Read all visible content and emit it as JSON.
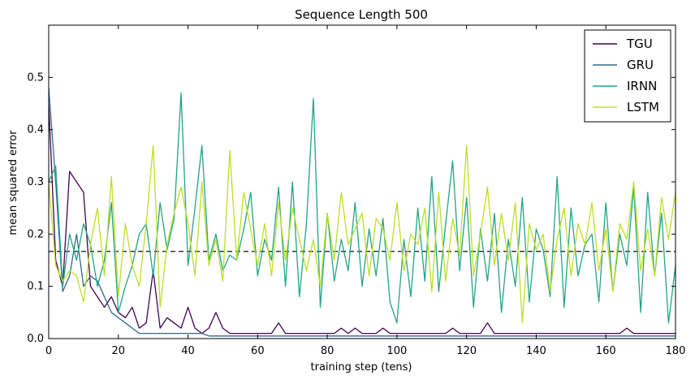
{
  "chart_data": {
    "type": "line",
    "title": "Sequence Length 500",
    "xlabel": "training step (tens)",
    "ylabel": "mean squared error",
    "xlim": [
      0,
      180
    ],
    "ylim": [
      0,
      0.6
    ],
    "xticks": [
      0,
      20,
      40,
      60,
      80,
      100,
      120,
      140,
      160,
      180
    ],
    "yticks": [
      0.0,
      0.1,
      0.2,
      0.3,
      0.4,
      0.5
    ],
    "ytick_labels": [
      "0.0",
      "0.1",
      "0.2",
      "0.3",
      "0.4",
      "0.5"
    ],
    "grid": false,
    "legend_position": "top-right",
    "baseline": {
      "style": "dashed",
      "value": 0.167,
      "color": "#333333"
    },
    "x": [
      0,
      2,
      4,
      6,
      8,
      10,
      12,
      14,
      16,
      18,
      20,
      22,
      24,
      26,
      28,
      30,
      32,
      34,
      36,
      38,
      40,
      42,
      44,
      46,
      48,
      50,
      52,
      54,
      56,
      58,
      60,
      62,
      64,
      66,
      68,
      70,
      72,
      74,
      76,
      78,
      80,
      82,
      84,
      86,
      88,
      90,
      92,
      94,
      96,
      98,
      100,
      102,
      104,
      106,
      108,
      110,
      112,
      114,
      116,
      118,
      120,
      122,
      124,
      126,
      128,
      130,
      132,
      134,
      136,
      138,
      140,
      142,
      144,
      146,
      148,
      150,
      152,
      154,
      156,
      158,
      160,
      162,
      164,
      166,
      168,
      170,
      172,
      174,
      176,
      178,
      180
    ],
    "series": [
      {
        "name": "TGU",
        "color": "#440154",
        "values": [
          0.45,
          0.15,
          0.1,
          0.32,
          0.3,
          0.28,
          0.1,
          0.08,
          0.06,
          0.08,
          0.05,
          0.04,
          0.06,
          0.02,
          0.03,
          0.13,
          0.02,
          0.04,
          0.03,
          0.02,
          0.06,
          0.02,
          0.01,
          0.02,
          0.05,
          0.02,
          0.01,
          0.01,
          0.01,
          0.01,
          0.01,
          0.01,
          0.01,
          0.03,
          0.01,
          0.01,
          0.01,
          0.01,
          0.01,
          0.01,
          0.01,
          0.01,
          0.02,
          0.01,
          0.02,
          0.01,
          0.01,
          0.01,
          0.02,
          0.01,
          0.01,
          0.01,
          0.01,
          0.01,
          0.01,
          0.01,
          0.01,
          0.01,
          0.02,
          0.01,
          0.01,
          0.01,
          0.01,
          0.03,
          0.01,
          0.01,
          0.01,
          0.01,
          0.01,
          0.01,
          0.01,
          0.01,
          0.01,
          0.01,
          0.01,
          0.01,
          0.01,
          0.01,
          0.01,
          0.01,
          0.01,
          0.01,
          0.01,
          0.02,
          0.01,
          0.01,
          0.01,
          0.01,
          0.01,
          0.01,
          0.01
        ]
      },
      {
        "name": "GRU",
        "color": "#31688e",
        "values": [
          0.48,
          0.3,
          0.09,
          0.12,
          0.2,
          0.1,
          0.12,
          0.11,
          0.08,
          0.05,
          0.04,
          0.03,
          0.02,
          0.01,
          0.01,
          0.01,
          0.01,
          0.01,
          0.01,
          0.01,
          0.01,
          0.01,
          0.01,
          0.005,
          0.005,
          0.005,
          0.005,
          0.005,
          0.005,
          0.005,
          0.005,
          0.005,
          0.005,
          0.005,
          0.005,
          0.005,
          0.005,
          0.005,
          0.005,
          0.005,
          0.005,
          0.005,
          0.005,
          0.005,
          0.005,
          0.005,
          0.005,
          0.005,
          0.005,
          0.005,
          0.005,
          0.005,
          0.005,
          0.005,
          0.005,
          0.005,
          0.005,
          0.005,
          0.005,
          0.005,
          0.005,
          0.005,
          0.005,
          0.005,
          0.005,
          0.005,
          0.005,
          0.005,
          0.005,
          0.005,
          0.005,
          0.005,
          0.005,
          0.005,
          0.005,
          0.005,
          0.005,
          0.005,
          0.005,
          0.005,
          0.005,
          0.005,
          0.005,
          0.005,
          0.005,
          0.005,
          0.005,
          0.005,
          0.005,
          0.005,
          0.005
        ]
      },
      {
        "name": "IRNN",
        "color": "#21a585",
        "values": [
          0.3,
          0.33,
          0.1,
          0.2,
          0.15,
          0.22,
          0.18,
          0.1,
          0.15,
          0.26,
          0.05,
          0.1,
          0.14,
          0.2,
          0.22,
          0.12,
          0.26,
          0.17,
          0.23,
          0.47,
          0.14,
          0.25,
          0.37,
          0.15,
          0.2,
          0.13,
          0.16,
          0.15,
          0.21,
          0.28,
          0.12,
          0.19,
          0.15,
          0.29,
          0.1,
          0.3,
          0.08,
          0.22,
          0.46,
          0.06,
          0.24,
          0.11,
          0.19,
          0.13,
          0.26,
          0.1,
          0.21,
          0.12,
          0.23,
          0.07,
          0.03,
          0.19,
          0.08,
          0.25,
          0.11,
          0.31,
          0.09,
          0.22,
          0.34,
          0.13,
          0.27,
          0.06,
          0.21,
          0.11,
          0.24,
          0.05,
          0.19,
          0.1,
          0.27,
          0.07,
          0.21,
          0.17,
          0.08,
          0.31,
          0.06,
          0.25,
          0.12,
          0.18,
          0.2,
          0.07,
          0.26,
          0.09,
          0.2,
          0.14,
          0.29,
          0.05,
          0.28,
          0.12,
          0.24,
          0.03,
          0.14
        ]
      },
      {
        "name": "LSTM",
        "color": "#bddf26",
        "values": [
          0.3,
          0.14,
          0.11,
          0.13,
          0.12,
          0.07,
          0.18,
          0.25,
          0.12,
          0.31,
          0.08,
          0.22,
          0.14,
          0.1,
          0.22,
          0.37,
          0.06,
          0.18,
          0.24,
          0.29,
          0.22,
          0.12,
          0.3,
          0.14,
          0.19,
          0.11,
          0.36,
          0.15,
          0.28,
          0.21,
          0.14,
          0.22,
          0.12,
          0.26,
          0.15,
          0.25,
          0.19,
          0.13,
          0.19,
          0.1,
          0.24,
          0.15,
          0.28,
          0.18,
          0.21,
          0.24,
          0.12,
          0.23,
          0.21,
          0.15,
          0.26,
          0.13,
          0.2,
          0.18,
          0.25,
          0.09,
          0.28,
          0.11,
          0.23,
          0.16,
          0.37,
          0.12,
          0.2,
          0.29,
          0.14,
          0.24,
          0.15,
          0.26,
          0.03,
          0.22,
          0.17,
          0.2,
          0.09,
          0.19,
          0.25,
          0.12,
          0.22,
          0.18,
          0.26,
          0.13,
          0.21,
          0.09,
          0.22,
          0.19,
          0.3,
          0.13,
          0.21,
          0.12,
          0.27,
          0.19,
          0.28
        ]
      }
    ]
  }
}
